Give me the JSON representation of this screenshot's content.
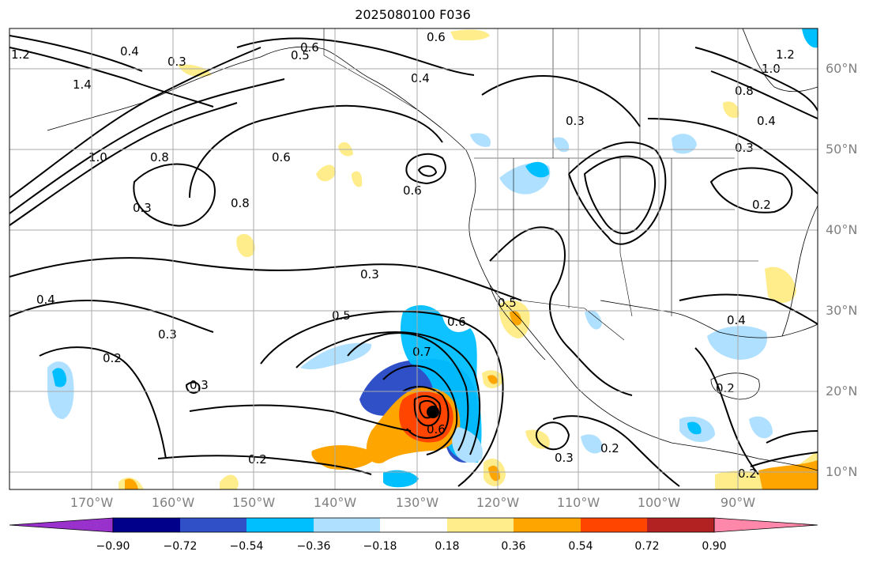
{
  "title": "2025080100 F036",
  "map": {
    "lat_labels": [
      "60°N",
      "50°N",
      "40°N",
      "30°N",
      "20°N",
      "10°N"
    ],
    "lon_labels": [
      "170°W",
      "160°W",
      "150°W",
      "140°W",
      "130°W",
      "120°W",
      "110°W",
      "100°W",
      "90°W"
    ],
    "gridline_color": "#aaaaaa",
    "label_color": "#808080"
  },
  "contour_labels": [
    "1.2",
    "0.4",
    "0.3",
    "0.6",
    "0.5",
    "1.4",
    "1.0",
    "0.8",
    "0.6",
    "0.3",
    "0.8",
    "0.4",
    "0.3",
    "0.5",
    "0.3",
    "0.6",
    "0.4",
    "0.2",
    "0.3",
    "0.7",
    "0.6",
    "0.5",
    "0.2",
    "0.3",
    "0.2",
    "0.3",
    "0.2",
    "0.2",
    "0.4",
    "0.2",
    "1.2",
    "1.0",
    "0.8",
    "0.4",
    "0.3",
    "0.6",
    "0.6"
  ],
  "colorbar": {
    "ticks": [
      "−0.90",
      "−0.72",
      "−0.54",
      "−0.36",
      "−0.18",
      "0.18",
      "0.36",
      "0.54",
      "0.72",
      "0.90"
    ],
    "under_color": "#9932cc",
    "over_color": "#ff88aa",
    "colors": [
      "#00008b",
      "#3050c8",
      "#00bfff",
      "#b0e0ff",
      "#ffffff",
      "#ffec8b",
      "#ffa500",
      "#ff4500",
      "#b22222"
    ]
  }
}
